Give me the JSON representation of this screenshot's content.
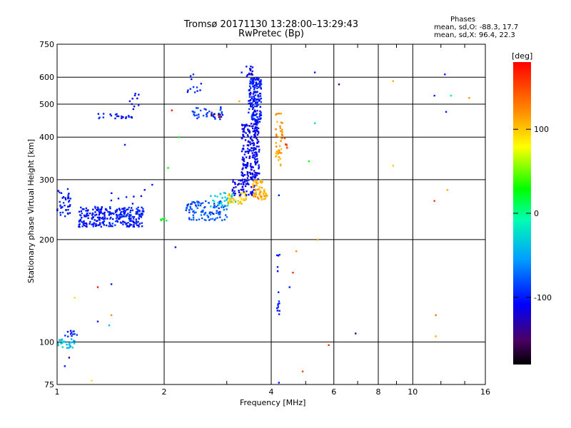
{
  "chart_data": {
    "type": "scatter",
    "title": "Tromsø 20171130 13:28:00–13:29:43",
    "subtitle": "RwPretec (Bp)",
    "xlabel": "Frequency [MHz]",
    "ylabel": "Stationary phase Virtual Height [km]",
    "x_scale": "log",
    "y_scale": "log",
    "xlim": [
      1,
      16
    ],
    "ylim": [
      75,
      750
    ],
    "x_ticks": [
      1,
      2,
      4,
      6,
      8,
      10,
      16
    ],
    "x_tick_labels": [
      "1",
      "2",
      "4",
      "6",
      "8",
      "10",
      "16"
    ],
    "x_gridlines": [
      1,
      2,
      4,
      6,
      8,
      10,
      16
    ],
    "y_ticks": [
      75,
      100,
      200,
      300,
      400,
      500,
      600,
      750
    ],
    "y_tick_labels": [
      "75",
      "100",
      "200",
      "300",
      "400",
      "500",
      "600",
      "750"
    ],
    "y_gridlines": [
      100,
      200,
      300,
      400,
      500,
      600
    ],
    "grid": true,
    "phases": {
      "heading": "Phases",
      "line_o": "mean, sd,O:  -88.3, 17.7",
      "line_x": "mean, sd,X:  96.4, 22.3"
    },
    "colorbar": {
      "label": "[deg]",
      "range": [
        -180,
        180
      ],
      "ticks": [
        100,
        0,
        -100
      ],
      "tick_labels": [
        "100",
        "0",
        "-100"
      ]
    },
    "clusters": [
      {
        "x": [
          1.0,
          1.09
        ],
        "y": [
          230,
          282
        ],
        "phase": -100,
        "count": 40
      },
      {
        "x": [
          1.15,
          1.75
        ],
        "y": [
          218,
          250
        ],
        "phase": -100,
        "count": 280
      },
      {
        "x": [
          1.4,
          1.8
        ],
        "y": [
          255,
          285
        ],
        "phase": -110,
        "count": 8
      },
      {
        "x": [
          1.28,
          1.65
        ],
        "y": [
          450,
          470
        ],
        "phase": -100,
        "count": 22
      },
      {
        "x": [
          1.6,
          1.7
        ],
        "y": [
          480,
          540
        ],
        "phase": -105,
        "count": 10
      },
      {
        "x": [
          1.95,
          2.05
        ],
        "y": [
          225,
          232
        ],
        "phase": 20,
        "count": 6
      },
      {
        "x": [
          2.3,
          3.0
        ],
        "y": [
          228,
          260
        ],
        "phase": -80,
        "count": 110
      },
      {
        "x": [
          2.7,
          3.2
        ],
        "y": [
          250,
          275
        ],
        "phase": -30,
        "count": 30
      },
      {
        "x": [
          3.0,
          3.4
        ],
        "y": [
          255,
          275
        ],
        "phase": 100,
        "count": 40
      },
      {
        "x": [
          3.1,
          3.6
        ],
        "y": [
          270,
          300
        ],
        "phase": -110,
        "count": 60
      },
      {
        "x": [
          3.3,
          3.7
        ],
        "y": [
          300,
          440
        ],
        "phase": -110,
        "count": 220
      },
      {
        "x": [
          3.45,
          3.75
        ],
        "y": [
          440,
          600
        ],
        "phase": -100,
        "count": 170
      },
      {
        "x": [
          3.4,
          3.55
        ],
        "y": [
          600,
          650
        ],
        "phase": -110,
        "count": 15
      },
      {
        "x": [
          3.55,
          3.9
        ],
        "y": [
          262,
          300
        ],
        "phase": 110,
        "count": 60
      },
      {
        "x": [
          2.4,
          2.95
        ],
        "y": [
          450,
          490
        ],
        "phase": -90,
        "count": 35
      },
      {
        "x": [
          2.7,
          2.9
        ],
        "y": [
          455,
          470
        ],
        "phase": -140,
        "count": 8
      },
      {
        "x": [
          2.3,
          2.55
        ],
        "y": [
          540,
          620
        ],
        "phase": -100,
        "count": 12
      },
      {
        "x": [
          4.1,
          4.3
        ],
        "y": [
          330,
          470
        ],
        "phase": 115,
        "count": 45
      },
      {
        "x": [
          4.35,
          4.45
        ],
        "y": [
          360,
          400
        ],
        "phase": 150,
        "count": 6
      },
      {
        "x": [
          1.0,
          1.12
        ],
        "y": [
          96,
          102
        ],
        "phase": -40,
        "count": 30
      },
      {
        "x": [
          1.05,
          1.15
        ],
        "y": [
          103,
          108
        ],
        "phase": -95,
        "count": 12
      },
      {
        "x": [
          4.15,
          4.22
        ],
        "y": [
          120,
          196
        ],
        "phase": -105,
        "count": 14
      }
    ],
    "points": [
      {
        "x": 1.05,
        "y": 85,
        "phase": -100
      },
      {
        "x": 1.08,
        "y": 90,
        "phase": -130
      },
      {
        "x": 1.12,
        "y": 135,
        "phase": 90
      },
      {
        "x": 1.25,
        "y": 77,
        "phase": 90
      },
      {
        "x": 1.3,
        "y": 145,
        "phase": 170
      },
      {
        "x": 1.3,
        "y": 115,
        "phase": -100
      },
      {
        "x": 1.42,
        "y": 148,
        "phase": -100
      },
      {
        "x": 1.42,
        "y": 120,
        "phase": 120
      },
      {
        "x": 1.4,
        "y": 112,
        "phase": -40
      },
      {
        "x": 1.55,
        "y": 380,
        "phase": -100
      },
      {
        "x": 1.85,
        "y": 290,
        "phase": -100
      },
      {
        "x": 2.05,
        "y": 325,
        "phase": 30
      },
      {
        "x": 2.15,
        "y": 190,
        "phase": -100
      },
      {
        "x": 2.1,
        "y": 480,
        "phase": 170
      },
      {
        "x": 2.2,
        "y": 400,
        "phase": 30
      },
      {
        "x": 3.25,
        "y": 510,
        "phase": 110
      },
      {
        "x": 3.3,
        "y": 620,
        "phase": -100
      },
      {
        "x": 4.2,
        "y": 270,
        "phase": -100
      },
      {
        "x": 4.2,
        "y": 76,
        "phase": -100
      },
      {
        "x": 4.5,
        "y": 145,
        "phase": -100
      },
      {
        "x": 4.6,
        "y": 160,
        "phase": 160
      },
      {
        "x": 4.7,
        "y": 185,
        "phase": 120
      },
      {
        "x": 4.9,
        "y": 82,
        "phase": 150
      },
      {
        "x": 5.3,
        "y": 440,
        "phase": -30
      },
      {
        "x": 5.3,
        "y": 620,
        "phase": -100
      },
      {
        "x": 5.4,
        "y": 200,
        "phase": 110
      },
      {
        "x": 5.1,
        "y": 340,
        "phase": 30
      },
      {
        "x": 5.8,
        "y": 98,
        "phase": 160
      },
      {
        "x": 6.2,
        "y": 572,
        "phase": -150
      },
      {
        "x": 6.9,
        "y": 106,
        "phase": -140
      },
      {
        "x": 8.8,
        "y": 330,
        "phase": 100
      },
      {
        "x": 8.8,
        "y": 585,
        "phase": 110
      },
      {
        "x": 11.5,
        "y": 530,
        "phase": -100
      },
      {
        "x": 11.5,
        "y": 260,
        "phase": 160
      },
      {
        "x": 11.6,
        "y": 120,
        "phase": 130
      },
      {
        "x": 11.6,
        "y": 104,
        "phase": 110
      },
      {
        "x": 12.3,
        "y": 612,
        "phase": -100
      },
      {
        "x": 12.4,
        "y": 475,
        "phase": -100
      },
      {
        "x": 12.5,
        "y": 280,
        "phase": 110
      },
      {
        "x": 12.8,
        "y": 530,
        "phase": -20
      },
      {
        "x": 14.4,
        "y": 522,
        "phase": 120
      },
      {
        "x": 4.15,
        "y": 180,
        "phase": -100
      }
    ]
  }
}
